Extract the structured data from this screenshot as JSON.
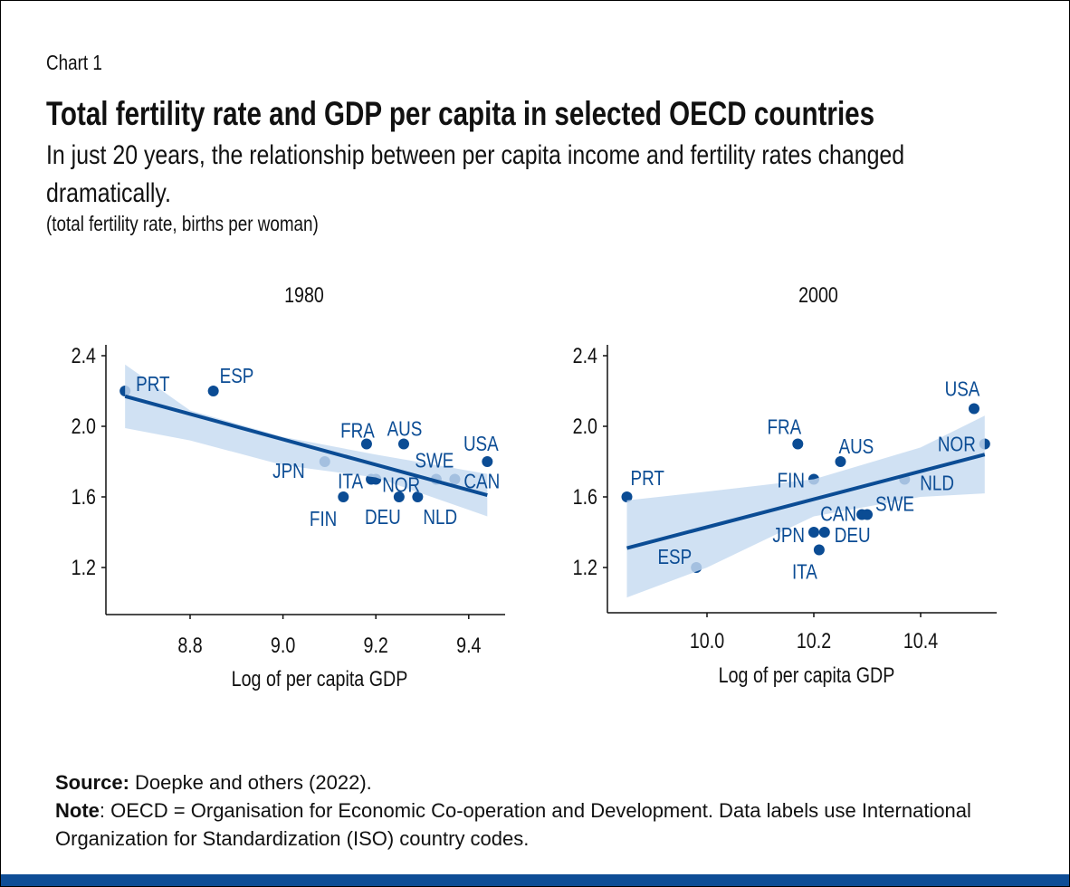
{
  "header": {
    "chart_label": "Chart 1",
    "title": "Total fertility rate and GDP per capita in selected OECD countries",
    "subtitle": "In just 20 years, the relationship between per capita income and fertility rates changed dramatically.",
    "units": "(total fertility rate, births per woman)"
  },
  "footer": {
    "source_label": "Source:",
    "source_text": " Doepke and others (2022).",
    "note_label": "Note",
    "note_text": ": OECD = Organisation for Economic Co-operation and Development. Data labels use International Organization for Standardization (ISO) country codes."
  },
  "colors": {
    "point": "#0b4c94",
    "line": "#0b4c94",
    "band": "#c6dbf0",
    "bottom_bar": "#0e4d96"
  },
  "chart_data": [
    {
      "type": "scatter",
      "title": "1980",
      "xlabel": "Log of per capita GDP",
      "ylabel": "",
      "xticks": [
        "8.8",
        "9.0",
        "9.2",
        "9.4"
      ],
      "yticks": [
        "1.2",
        "1.6",
        "2.0",
        "2.4"
      ],
      "xlim": [
        8.62,
        9.47
      ],
      "ylim": [
        0.94,
        2.46
      ],
      "points": [
        {
          "label": "PRT",
          "x": 8.66,
          "y": 2.2
        },
        {
          "label": "ESP",
          "x": 8.85,
          "y": 2.2
        },
        {
          "label": "JPN",
          "x": 9.09,
          "y": 1.8
        },
        {
          "label": "FRA",
          "x": 9.18,
          "y": 1.9
        },
        {
          "label": "AUS",
          "x": 9.26,
          "y": 1.9
        },
        {
          "label": "ITA",
          "x": 9.19,
          "y": 1.7
        },
        {
          "label": "NOR",
          "x": 9.2,
          "y": 1.7
        },
        {
          "label": "FIN",
          "x": 9.13,
          "y": 1.6
        },
        {
          "label": "DEU",
          "x": 9.25,
          "y": 1.6
        },
        {
          "label": "NLD",
          "x": 9.29,
          "y": 1.6
        },
        {
          "label": "SWE",
          "x": 9.33,
          "y": 1.7
        },
        {
          "label": "CAN",
          "x": 9.37,
          "y": 1.7
        },
        {
          "label": "USA",
          "x": 9.44,
          "y": 1.8
        }
      ],
      "fit": {
        "x": [
          8.66,
          9.44
        ],
        "y": [
          2.17,
          1.61
        ]
      },
      "confidence_band": {
        "x": [
          8.66,
          8.8,
          9.0,
          9.2,
          9.44
        ],
        "lower": [
          1.99,
          1.92,
          1.78,
          1.71,
          1.49
        ],
        "upper": [
          2.35,
          2.09,
          1.94,
          1.84,
          1.73
        ]
      }
    },
    {
      "type": "scatter",
      "title": "2000",
      "xlabel": "Log of per capita GDP",
      "ylabel": "",
      "xticks": [
        "10.0",
        "10.2",
        "10.4"
      ],
      "yticks": [
        "1.2",
        "1.6",
        "2.0",
        "2.4"
      ],
      "xlim": [
        9.81,
        10.54
      ],
      "ylim": [
        0.94,
        2.46
      ],
      "points": [
        {
          "label": "PRT",
          "x": 9.85,
          "y": 1.6
        },
        {
          "label": "ESP",
          "x": 9.98,
          "y": 1.2
        },
        {
          "label": "FRA",
          "x": 10.17,
          "y": 1.9
        },
        {
          "label": "FIN",
          "x": 10.2,
          "y": 1.7
        },
        {
          "label": "AUS",
          "x": 10.25,
          "y": 1.8
        },
        {
          "label": "JPN",
          "x": 10.2,
          "y": 1.4
        },
        {
          "label": "DEU",
          "x": 10.22,
          "y": 1.4
        },
        {
          "label": "ITA",
          "x": 10.21,
          "y": 1.3
        },
        {
          "label": "CAN",
          "x": 10.29,
          "y": 1.5
        },
        {
          "label": "SWE",
          "x": 10.3,
          "y": 1.5
        },
        {
          "label": "NLD",
          "x": 10.37,
          "y": 1.7
        },
        {
          "label": "USA",
          "x": 10.5,
          "y": 2.1
        },
        {
          "label": "NOR",
          "x": 10.52,
          "y": 1.9
        }
      ],
      "fit": {
        "x": [
          9.85,
          10.52
        ],
        "y": [
          1.31,
          1.84
        ]
      },
      "confidence_band": {
        "x": [
          9.85,
          10.0,
          10.2,
          10.4,
          10.52
        ],
        "lower": [
          1.03,
          1.2,
          1.49,
          1.6,
          1.62
        ],
        "upper": [
          1.58,
          1.63,
          1.7,
          1.88,
          2.06
        ]
      }
    }
  ]
}
